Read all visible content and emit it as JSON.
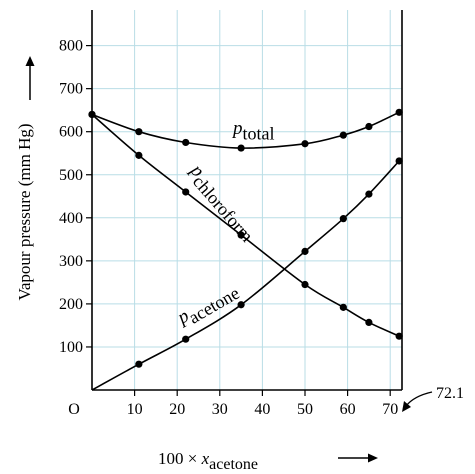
{
  "chart_data": {
    "type": "line",
    "title": "",
    "xlabel": {
      "prefix": "100 × ",
      "var": "x",
      "sub": "acetone"
    },
    "ylabel": "Vapour pressure (mm Hg)",
    "xlim": [
      0,
      72.1
    ],
    "ylim": [
      0,
      880
    ],
    "x_ticks": [
      10,
      20,
      30,
      40,
      50,
      60,
      70
    ],
    "y_ticks": [
      100,
      200,
      300,
      400,
      500,
      600,
      700,
      800
    ],
    "origin_label": "O",
    "end_annotation": "72.1",
    "grid": true,
    "series": [
      {
        "name": "total",
        "label": {
          "var": "p",
          "sub": "total"
        },
        "x": [
          0,
          11,
          22,
          35,
          50,
          59,
          65,
          72.1
        ],
        "y": [
          640,
          600,
          575,
          562,
          572,
          592,
          612,
          645
        ]
      },
      {
        "name": "chloroform",
        "label": {
          "var": "p",
          "sub": "chloroform"
        },
        "x": [
          0,
          11,
          22,
          35,
          50,
          59,
          65,
          72.1
        ],
        "y": [
          640,
          545,
          460,
          360,
          245,
          192,
          157,
          125
        ]
      },
      {
        "name": "acetone",
        "label": {
          "var": "p",
          "sub": "acetone"
        },
        "x": [
          0,
          11,
          22,
          35,
          50,
          59,
          65,
          72.1
        ],
        "y": [
          0,
          60,
          118,
          198,
          322,
          398,
          455,
          532
        ]
      }
    ]
  }
}
